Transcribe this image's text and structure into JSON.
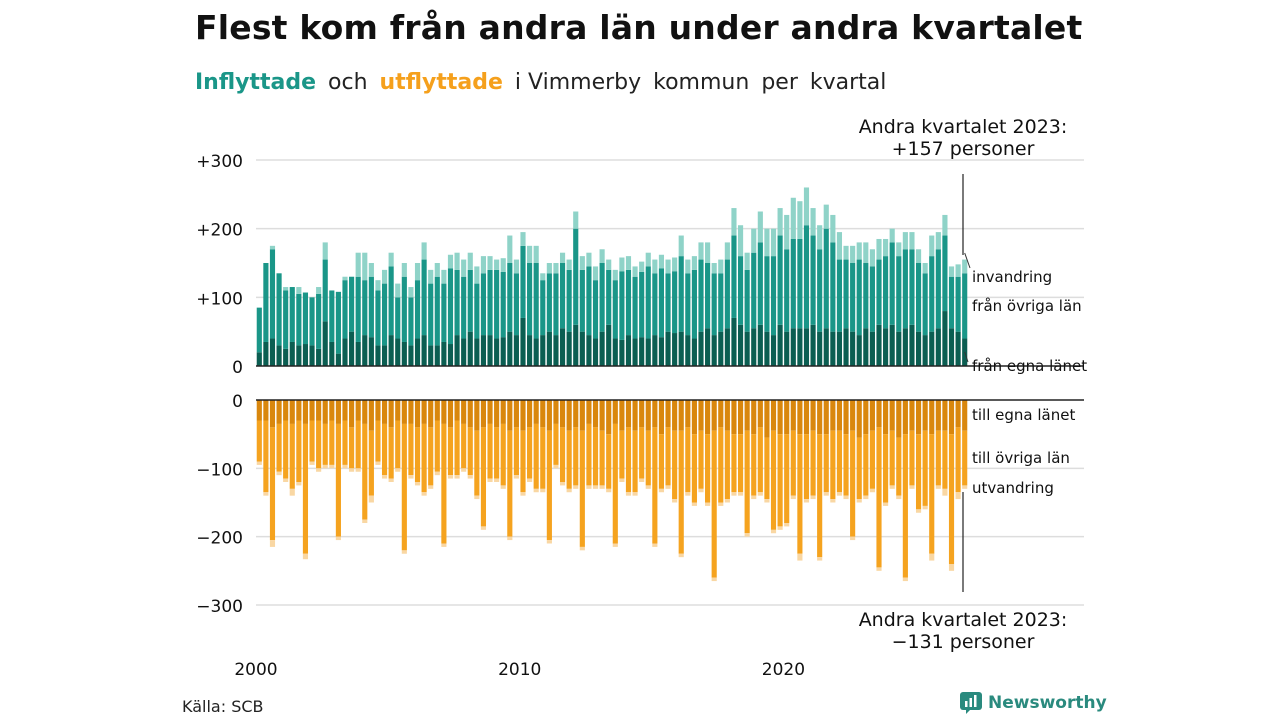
{
  "title": "Flest kom från andra län under andra kvartalet",
  "subtitle": {
    "part1": "Inflyttade",
    "part2": "och",
    "part3": "utflyttade",
    "part4": "i Vimmerby",
    "part5": "kommun",
    "part6": "per",
    "part7": "kvartal"
  },
  "source": "Källa: SCB",
  "brand": "Newsworthy",
  "colors": {
    "in_own": "#0b5e52",
    "in_other": "#1a9688",
    "in_immig": "#8fd3c8",
    "out_own": "#d9870d",
    "out_other": "#f5a31f",
    "out_emig": "#f9d7a3",
    "grid": "#dddddd"
  },
  "chart_data": {
    "type": "bar",
    "stacked": true,
    "x_start": "2000 Q1",
    "x_ticks": [
      "2000",
      "2010",
      "2020"
    ],
    "yticks_in": [
      "+300",
      "+200",
      "+100",
      "0"
    ],
    "yticks_out": [
      "0",
      "−100",
      "−200",
      "−300"
    ],
    "ylim_in": [
      0,
      300
    ],
    "ylim_out": [
      -300,
      0
    ],
    "annotation_top": [
      "Andra kvartalet 2023:",
      "+157 personer"
    ],
    "annotation_bottom": [
      "Andra kvartalet 2023:",
      "−131 personer"
    ],
    "in_labels": [
      "invandring",
      "från övriga län",
      "från egna länet"
    ],
    "out_labels": [
      "till egna länet",
      "till övriga län",
      "utvandring"
    ],
    "inflow": {
      "egna_lanet": [
        20,
        35,
        40,
        30,
        25,
        35,
        30,
        32,
        30,
        25,
        65,
        35,
        18,
        40,
        50,
        35,
        45,
        42,
        30,
        30,
        45,
        40,
        35,
        30,
        40,
        45,
        30,
        30,
        35,
        32,
        45,
        40,
        50,
        40,
        45,
        45,
        40,
        42,
        50,
        45,
        70,
        45,
        40,
        45,
        50,
        45,
        55,
        50,
        60,
        50,
        45,
        40,
        50,
        60,
        40,
        38,
        45,
        40,
        42,
        40,
        45,
        42,
        50,
        48,
        50,
        45,
        40,
        50,
        55,
        45,
        50,
        55,
        70,
        60,
        50,
        55,
        60,
        50,
        45,
        60,
        50,
        55,
        55,
        55,
        60,
        50,
        55,
        50,
        50,
        55,
        50,
        45,
        55,
        50,
        60,
        55,
        60,
        50,
        55,
        60,
        50,
        45,
        50,
        55,
        80,
        55,
        50,
        40
      ],
      "ovriga_lan": [
        65,
        115,
        130,
        105,
        85,
        80,
        75,
        75,
        70,
        80,
        90,
        75,
        90,
        85,
        80,
        95,
        80,
        88,
        80,
        90,
        100,
        60,
        95,
        70,
        85,
        110,
        90,
        100,
        85,
        110,
        95,
        90,
        90,
        80,
        90,
        95,
        100,
        95,
        100,
        90,
        105,
        105,
        110,
        80,
        85,
        90,
        95,
        90,
        140,
        90,
        100,
        85,
        100,
        80,
        85,
        100,
        95,
        90,
        95,
        105,
        90,
        100,
        85,
        90,
        110,
        90,
        100,
        105,
        95,
        90,
        85,
        100,
        120,
        100,
        90,
        110,
        120,
        110,
        115,
        130,
        120,
        130,
        130,
        150,
        130,
        120,
        145,
        130,
        105,
        100,
        100,
        110,
        95,
        95,
        95,
        105,
        120,
        110,
        115,
        110,
        100,
        90,
        110,
        115,
        110,
        75,
        80,
        95
      ],
      "invandring": [
        0,
        0,
        5,
        0,
        5,
        0,
        10,
        0,
        0,
        10,
        25,
        0,
        0,
        5,
        0,
        35,
        40,
        20,
        15,
        20,
        20,
        20,
        20,
        15,
        25,
        25,
        20,
        20,
        20,
        20,
        25,
        25,
        25,
        25,
        25,
        20,
        15,
        20,
        40,
        20,
        20,
        25,
        25,
        10,
        15,
        15,
        15,
        15,
        25,
        20,
        20,
        20,
        20,
        15,
        15,
        20,
        20,
        15,
        15,
        20,
        20,
        20,
        20,
        20,
        30,
        20,
        20,
        25,
        30,
        15,
        20,
        25,
        40,
        45,
        25,
        35,
        45,
        40,
        40,
        40,
        50,
        60,
        55,
        55,
        40,
        35,
        35,
        40,
        40,
        20,
        25,
        25,
        30,
        25,
        30,
        25,
        20,
        20,
        25,
        25,
        20,
        15,
        30,
        25,
        30,
        15,
        18,
        20
      ]
    },
    "outflow": {
      "egna_lanet": [
        30,
        30,
        40,
        35,
        30,
        35,
        30,
        35,
        30,
        30,
        35,
        30,
        35,
        30,
        40,
        30,
        35,
        45,
        30,
        35,
        40,
        30,
        35,
        35,
        40,
        35,
        40,
        30,
        35,
        40,
        30,
        35,
        40,
        45,
        40,
        35,
        40,
        35,
        45,
        40,
        45,
        40,
        35,
        40,
        45,
        35,
        40,
        45,
        40,
        45,
        35,
        40,
        45,
        50,
        35,
        45,
        40,
        45,
        40,
        45,
        40,
        50,
        40,
        45,
        45,
        40,
        50,
        45,
        50,
        45,
        40,
        45,
        50,
        50,
        45,
        50,
        40,
        55,
        45,
        50,
        50,
        45,
        50,
        50,
        45,
        50,
        50,
        45,
        45,
        50,
        45,
        55,
        50,
        45,
        40,
        50,
        45,
        55,
        50,
        45,
        50,
        45,
        50,
        45,
        45,
        50,
        40,
        45
      ],
      "ovriga_lan": [
        60,
        105,
        165,
        70,
        85,
        95,
        90,
        190,
        60,
        70,
        60,
        65,
        165,
        65,
        60,
        70,
        140,
        95,
        60,
        75,
        75,
        70,
        185,
        75,
        80,
        100,
        85,
        75,
        175,
        70,
        80,
        65,
        70,
        95,
        145,
        80,
        75,
        90,
        155,
        70,
        90,
        75,
        95,
        90,
        160,
        60,
        80,
        85,
        85,
        170,
        90,
        85,
        80,
        80,
        175,
        70,
        95,
        90,
        75,
        80,
        170,
        80,
        85,
        100,
        180,
        95,
        100,
        85,
        100,
        215,
        110,
        100,
        85,
        85,
        150,
        90,
        95,
        90,
        145,
        135,
        130,
        95,
        175,
        95,
        95,
        180,
        85,
        100,
        90,
        90,
        155,
        90,
        90,
        85,
        205,
        100,
        80,
        85,
        210,
        80,
        110,
        110,
        175,
        80,
        85,
        190,
        95,
        80
      ],
      "utvandring": [
        5,
        5,
        10,
        5,
        5,
        10,
        5,
        8,
        5,
        5,
        5,
        5,
        5,
        5,
        5,
        5,
        5,
        10,
        5,
        5,
        5,
        5,
        5,
        5,
        5,
        5,
        5,
        5,
        5,
        5,
        5,
        5,
        5,
        5,
        5,
        5,
        5,
        5,
        5,
        5,
        5,
        5,
        5,
        5,
        5,
        5,
        5,
        5,
        5,
        5,
        5,
        5,
        5,
        5,
        5,
        5,
        5,
        5,
        5,
        5,
        5,
        5,
        5,
        5,
        5,
        5,
        5,
        5,
        5,
        5,
        5,
        5,
        5,
        5,
        5,
        5,
        5,
        5,
        5,
        5,
        5,
        5,
        10,
        5,
        5,
        5,
        5,
        5,
        5,
        5,
        5,
        5,
        5,
        5,
        5,
        5,
        5,
        5,
        5,
        5,
        5,
        5,
        10,
        5,
        10,
        10,
        10,
        5
      ]
    }
  }
}
